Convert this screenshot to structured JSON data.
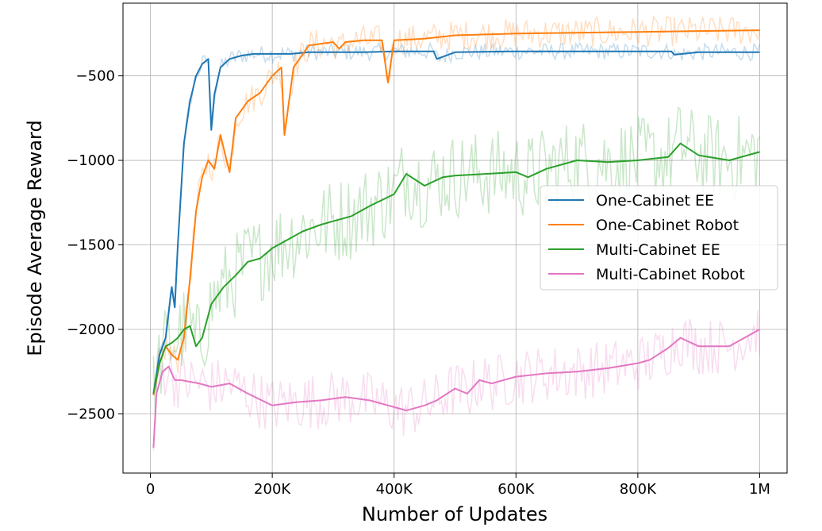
{
  "chart_data": {
    "type": "line",
    "title": "",
    "xlabel": "Number of Updates",
    "ylabel": "Episode Average Reward",
    "xlim": [
      -45000,
      1045000
    ],
    "ylim": [
      -2850,
      -70
    ],
    "x_ticks": [
      0,
      200000,
      400000,
      600000,
      800000,
      1000000
    ],
    "x_tick_labels": [
      "0",
      "200K",
      "400K",
      "600K",
      "800K",
      "1M"
    ],
    "y_ticks": [
      -500,
      -1000,
      -1500,
      -2000,
      -2500
    ],
    "y_tick_labels": [
      "−500",
      "−1000",
      "−1500",
      "−2000",
      "−2500"
    ],
    "grid": true,
    "legend_position": "center-right",
    "series": [
      {
        "name": "One-Cabinet EE",
        "color": "#1f77b4",
        "x": [
          5000,
          15000,
          25000,
          35000,
          40000,
          45000,
          55000,
          65000,
          75000,
          85000,
          95000,
          100000,
          105000,
          115000,
          130000,
          150000,
          170000,
          200000,
          230000,
          260000,
          300000,
          350000,
          400000,
          450000,
          465000,
          470000,
          500000,
          600000,
          700000,
          800000,
          855000,
          860000,
          900000,
          1000000
        ],
        "values": [
          -2380,
          -2150,
          -2050,
          -1750,
          -1870,
          -1500,
          -900,
          -650,
          -500,
          -430,
          -400,
          -820,
          -610,
          -450,
          -400,
          -380,
          -370,
          -370,
          -370,
          -360,
          -360,
          -360,
          -355,
          -355,
          -355,
          -400,
          -360,
          -355,
          -355,
          -355,
          -355,
          -375,
          -360,
          -360
        ]
      },
      {
        "name": "One-Cabinet Robot",
        "color": "#ff7f0e",
        "x": [
          5000,
          15000,
          25000,
          35000,
          45000,
          55000,
          65000,
          75000,
          85000,
          95000,
          105000,
          115000,
          125000,
          130000,
          140000,
          160000,
          180000,
          200000,
          215000,
          220000,
          235000,
          260000,
          300000,
          310000,
          320000,
          350000,
          380000,
          390000,
          400000,
          450000,
          500000,
          550000,
          600000,
          700000,
          800000,
          900000,
          1000000
        ],
        "values": [
          -2390,
          -2200,
          -2100,
          -2150,
          -2180,
          -2050,
          -1700,
          -1300,
          -1100,
          -1000,
          -1050,
          -850,
          -1000,
          -1070,
          -750,
          -650,
          -600,
          -500,
          -450,
          -850,
          -450,
          -320,
          -300,
          -340,
          -300,
          -290,
          -290,
          -540,
          -290,
          -280,
          -260,
          -255,
          -250,
          -245,
          -240,
          -235,
          -230
        ]
      },
      {
        "name": "Multi-Cabinet EE",
        "color": "#2ca02c",
        "x": [
          5000,
          15000,
          25000,
          35000,
          45000,
          55000,
          65000,
          75000,
          85000,
          100000,
          120000,
          140000,
          160000,
          180000,
          200000,
          220000,
          250000,
          280000,
          300000,
          330000,
          360000,
          400000,
          420000,
          450000,
          480000,
          500000,
          550000,
          600000,
          620000,
          650000,
          700000,
          750000,
          800000,
          850000,
          870000,
          900000,
          950000,
          1000000
        ],
        "values": [
          -2380,
          -2200,
          -2100,
          -2080,
          -2050,
          -2000,
          -1980,
          -2100,
          -2050,
          -1850,
          -1750,
          -1680,
          -1600,
          -1580,
          -1520,
          -1480,
          -1420,
          -1380,
          -1360,
          -1330,
          -1270,
          -1200,
          -1080,
          -1150,
          -1100,
          -1090,
          -1080,
          -1070,
          -1100,
          -1050,
          -1000,
          -1010,
          -1000,
          -980,
          -900,
          -970,
          -1000,
          -950
        ]
      },
      {
        "name": "Multi-Cabinet Robot",
        "color": "#e377c2",
        "x": [
          5000,
          10000,
          20000,
          30000,
          40000,
          50000,
          80000,
          100000,
          130000,
          160000,
          200000,
          240000,
          280000,
          320000,
          360000,
          400000,
          420000,
          450000,
          470000,
          500000,
          520000,
          540000,
          560000,
          600000,
          650000,
          700000,
          750000,
          800000,
          820000,
          850000,
          870000,
          900000,
          950000,
          1000000
        ],
        "values": [
          -2700,
          -2380,
          -2250,
          -2220,
          -2300,
          -2300,
          -2320,
          -2340,
          -2320,
          -2380,
          -2450,
          -2430,
          -2420,
          -2400,
          -2420,
          -2460,
          -2480,
          -2450,
          -2420,
          -2350,
          -2380,
          -2300,
          -2320,
          -2280,
          -2260,
          -2250,
          -2230,
          -2200,
          -2180,
          -2110,
          -2050,
          -2100,
          -2100,
          -2000
        ]
      }
    ]
  }
}
